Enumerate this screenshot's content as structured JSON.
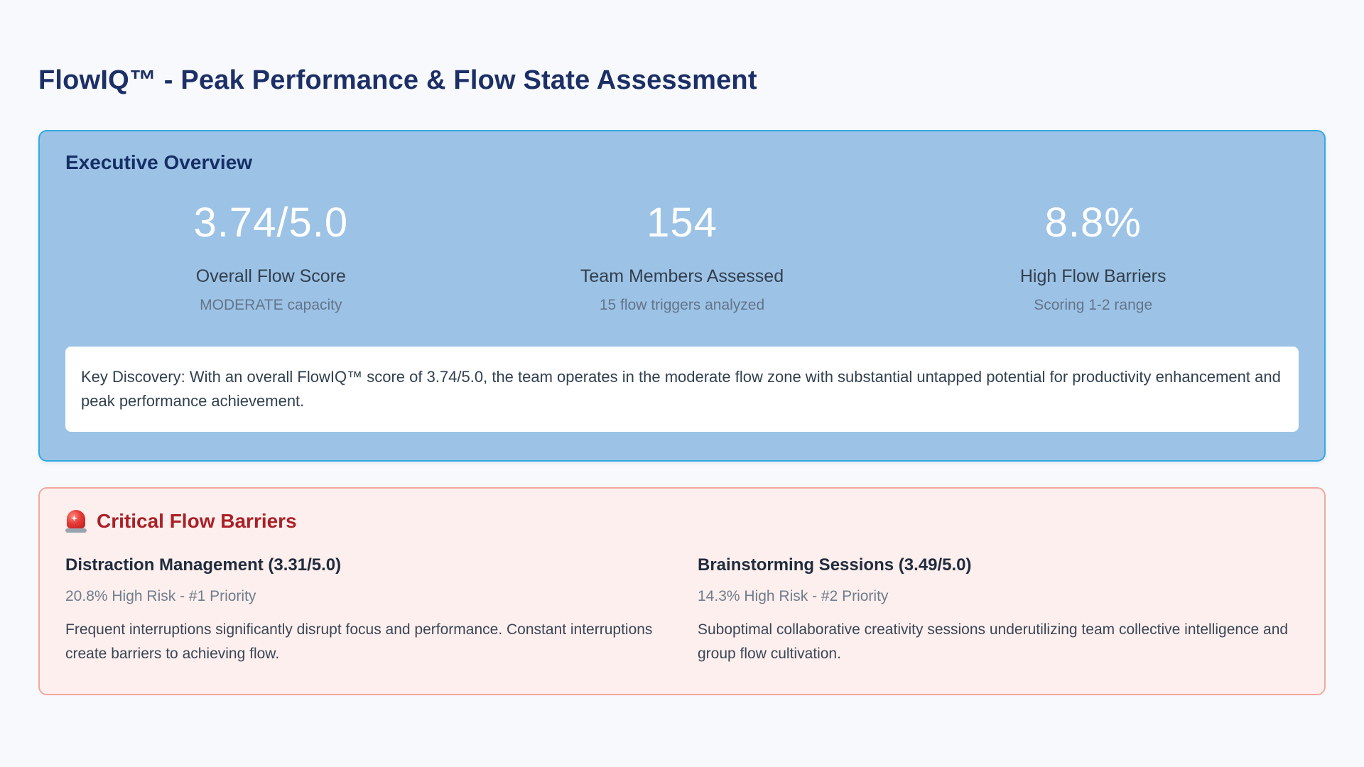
{
  "page": {
    "title": "FlowIQ™ - Peak Performance & Flow State Assessment"
  },
  "colors": {
    "page_background": "#f7f9fc",
    "title_navy": "#1c2f66",
    "overview_card_bg": "#9cc3e6",
    "overview_card_border": "#35a9e1",
    "stat_value_white": "#ffffff",
    "barriers_card_bg": "#fdefed",
    "barriers_card_border": "#f2a89f",
    "barriers_heading_red": "#ab2026"
  },
  "overview": {
    "heading": "Executive Overview",
    "stats": [
      {
        "value": "3.74/5.0",
        "label": "Overall Flow Score",
        "sublabel": "MODERATE capacity"
      },
      {
        "value": "154",
        "label": "Team Members Assessed",
        "sublabel": "15 flow triggers analyzed"
      },
      {
        "value": "8.8%",
        "label": "High Flow Barriers",
        "sublabel": "Scoring 1-2 range"
      }
    ],
    "key_discovery": "Key Discovery: With an overall FlowIQ™ score of 3.74/5.0, the team operates in the moderate flow zone with substantial untapped potential for productivity enhancement and peak performance achievement."
  },
  "barriers": {
    "icon": "siren",
    "heading": "Critical Flow Barriers",
    "items": [
      {
        "title": "Distraction Management (3.31/5.0)",
        "risk": "20.8% High Risk - #1 Priority",
        "description": "Frequent interruptions significantly disrupt focus and performance. Constant interruptions create barriers to achieving flow."
      },
      {
        "title": "Brainstorming Sessions (3.49/5.0)",
        "risk": "14.3% High Risk - #2 Priority",
        "description": "Suboptimal collaborative creativity sessions underutilizing team collective intelligence and group flow cultivation."
      }
    ]
  }
}
